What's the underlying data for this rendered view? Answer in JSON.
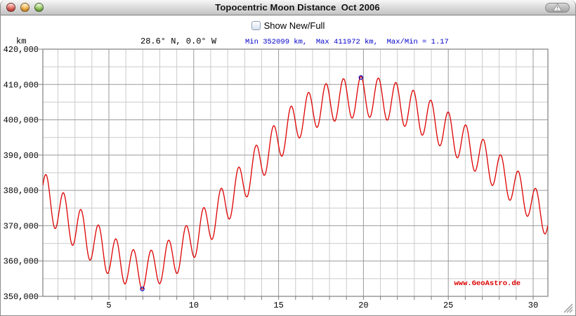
{
  "window": {
    "title": "Topocentric Moon Distance  Oct 2006",
    "buttons": {
      "close": "close",
      "minimize": "minimize",
      "zoom": "zoom",
      "toolbar_alert": "warning"
    }
  },
  "controls": {
    "show_newfull_label": "Show New/Full",
    "show_newfull_checked": false
  },
  "header": {
    "unit_label": "km",
    "location": "28.6° N, 0.0° W",
    "stats": "Min 352099 km,  Max 411972 km,  Max/Min = 1.17",
    "stats_color": "#0000cc"
  },
  "watermark": {
    "text": "www.GeoAstro.de",
    "color": "#dd0000"
  },
  "chart_data": {
    "type": "line",
    "title": "Topocentric Moon Distance Oct 2006",
    "ylabel": "km",
    "xlim": [
      1.109,
      30.87
    ],
    "ylim": [
      350000,
      420000
    ],
    "x_ticks": {
      "values": [
        5,
        10,
        15,
        20,
        25,
        30
      ],
      "labels": [
        "5",
        "10",
        "15",
        "20",
        "25",
        "30"
      ]
    },
    "y_ticks": {
      "values": [
        350000,
        360000,
        370000,
        380000,
        390000,
        400000,
        410000,
        420000
      ],
      "labels": [
        "350,000",
        "360,000",
        "370,000",
        "380,000",
        "390,000",
        "400,000",
        "410,000",
        "420,000"
      ]
    },
    "minor_grid": {
      "x_step_days": 1,
      "y_step_km": 5000
    },
    "grid_on": true,
    "colors": {
      "line": "#dd0000",
      "marker": "#0000bb",
      "grid_minor": "#cbcbcb",
      "grid_major": "#9a9a9a",
      "border": "#7f7f7f",
      "tick": "#7f7f7f",
      "label": "#000000"
    },
    "extrema": {
      "min": {
        "day": 6.97,
        "km": 352099
      },
      "max": {
        "day": 19.85,
        "km": 411972
      }
    },
    "model": {
      "description": "topocentric_distance_km(day) = mean(day) + amplitude(day) * cos(2*pi*(day - peak_phase_day)/period_days); mean interpolated (Catmull-Rom) through control points, amplitude linear",
      "period_days": 1.0306,
      "peak_phase_day": 1.3,
      "mean_control_points": [
        [
          1,
          379200
        ],
        [
          2,
          374600
        ],
        [
          3,
          370000
        ],
        [
          4,
          365800
        ],
        [
          5,
          362000
        ],
        [
          6,
          358900
        ],
        [
          7,
          357200
        ],
        [
          8,
          359000
        ],
        [
          9,
          362000
        ],
        [
          10,
          366500
        ],
        [
          11,
          371500
        ],
        [
          12,
          377000
        ],
        [
          13,
          383000
        ],
        [
          14,
          389000
        ],
        [
          15,
          394200
        ],
        [
          16,
          399500
        ],
        [
          17,
          402800
        ],
        [
          18,
          404900
        ],
        [
          19,
          406000
        ],
        [
          20,
          406500
        ],
        [
          21,
          406000
        ],
        [
          22,
          404700
        ],
        [
          23,
          402500
        ],
        [
          24,
          399800
        ],
        [
          25,
          396600
        ],
        [
          26,
          393100
        ],
        [
          27,
          389200
        ],
        [
          28,
          385100
        ],
        [
          29,
          380800
        ],
        [
          30,
          376200
        ],
        [
          31,
          371600
        ]
      ],
      "amplitude_control_points": [
        [
          1,
          6300
        ],
        [
          3,
          6200
        ],
        [
          5,
          5800
        ],
        [
          7,
          5200
        ],
        [
          9,
          5600
        ],
        [
          11,
          5800
        ],
        [
          13,
          5700
        ],
        [
          15,
          5600
        ],
        [
          17,
          5600
        ],
        [
          19,
          5800
        ],
        [
          21,
          5700
        ],
        [
          23,
          5700
        ],
        [
          25,
          5600
        ],
        [
          27,
          5500
        ],
        [
          29,
          5200
        ],
        [
          31,
          5000
        ]
      ]
    }
  }
}
